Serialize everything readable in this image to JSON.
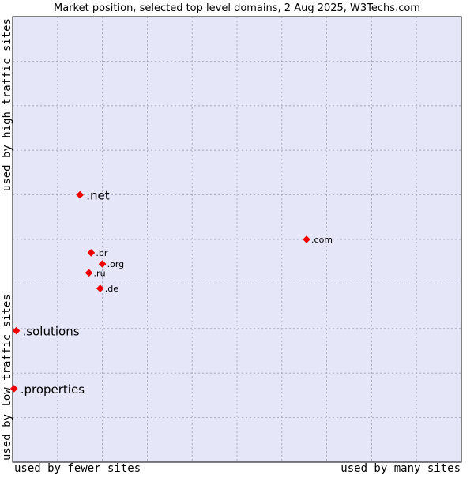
{
  "title": "Market position, selected top level domains, 2 Aug 2025, W3Techs.com",
  "colors": {
    "plot_bg": "#e5e6f8",
    "grid": "#a0a0b8",
    "marker": "#ee0000",
    "frame": "#000000",
    "text": "#000000"
  },
  "chart_data": {
    "type": "scatter",
    "title": "Market position, selected top level domains, 2 Aug 2025, W3Techs.com",
    "xlabel_left": "used by fewer sites",
    "xlabel_right": "used by many sites",
    "ylabel_bottom": "used by low traffic sites",
    "ylabel_top": "used by high traffic sites",
    "xlim": [
      0,
      10
    ],
    "ylim": [
      0,
      10
    ],
    "grid": true,
    "grid_divisions": 10,
    "points": [
      {
        "label": ".net",
        "x": 1.5,
        "y": 6.0,
        "size": "large"
      },
      {
        "label": ".com",
        "x": 6.55,
        "y": 5.0,
        "size": "small"
      },
      {
        "label": ".br",
        "x": 1.75,
        "y": 4.7,
        "size": "small"
      },
      {
        "label": ".org",
        "x": 2.0,
        "y": 4.45,
        "size": "small"
      },
      {
        "label": ".ru",
        "x": 1.7,
        "y": 4.25,
        "size": "small"
      },
      {
        "label": ".de",
        "x": 1.95,
        "y": 3.9,
        "size": "small"
      },
      {
        "label": ".solutions",
        "x": 0.08,
        "y": 2.95,
        "size": "large"
      },
      {
        "label": ".properties",
        "x": 0.03,
        "y": 1.65,
        "size": "large"
      }
    ]
  }
}
